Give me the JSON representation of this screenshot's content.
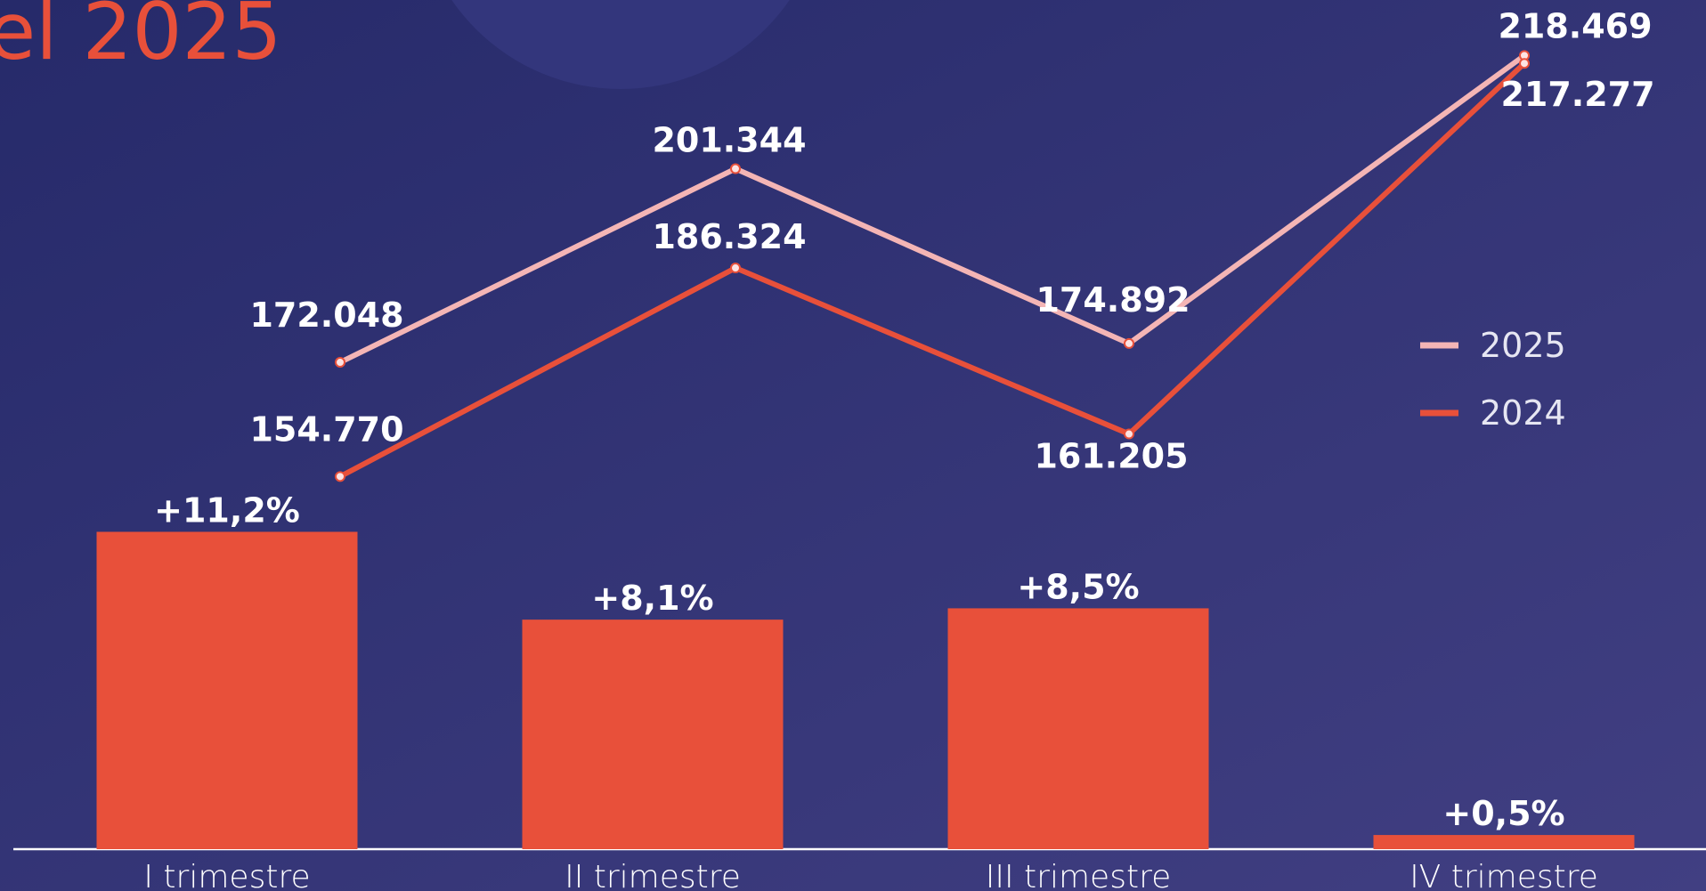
{
  "chart_data": {
    "type": "line-bar",
    "title": "el 2025",
    "categories": [
      "I trimestre",
      "II trimestre",
      "III trimestre",
      "IV trimestre"
    ],
    "ylim": [
      100000,
      220000
    ],
    "y2lim": [
      0,
      12
    ],
    "series": [
      {
        "name": "2025",
        "type": "line",
        "color": "#f4b5b5",
        "values": [
          172048,
          201344,
          174892,
          218469
        ],
        "value_labels": [
          "172.048",
          "201.344",
          "174.892",
          "218.469"
        ]
      },
      {
        "name": "2024",
        "type": "line",
        "color": "#e8503a",
        "values": [
          154770,
          186324,
          161205,
          217277
        ],
        "value_labels": [
          "154.770",
          "186.324",
          "161.205",
          "217.277"
        ]
      },
      {
        "type": "bar",
        "axis": "y2",
        "color": "#e8503a",
        "values": [
          11.2,
          8.1,
          8.5,
          0.5
        ],
        "value_labels": [
          "+11,2%",
          "+8,1%",
          "+8,5%",
          "+0,5%"
        ]
      }
    ]
  }
}
